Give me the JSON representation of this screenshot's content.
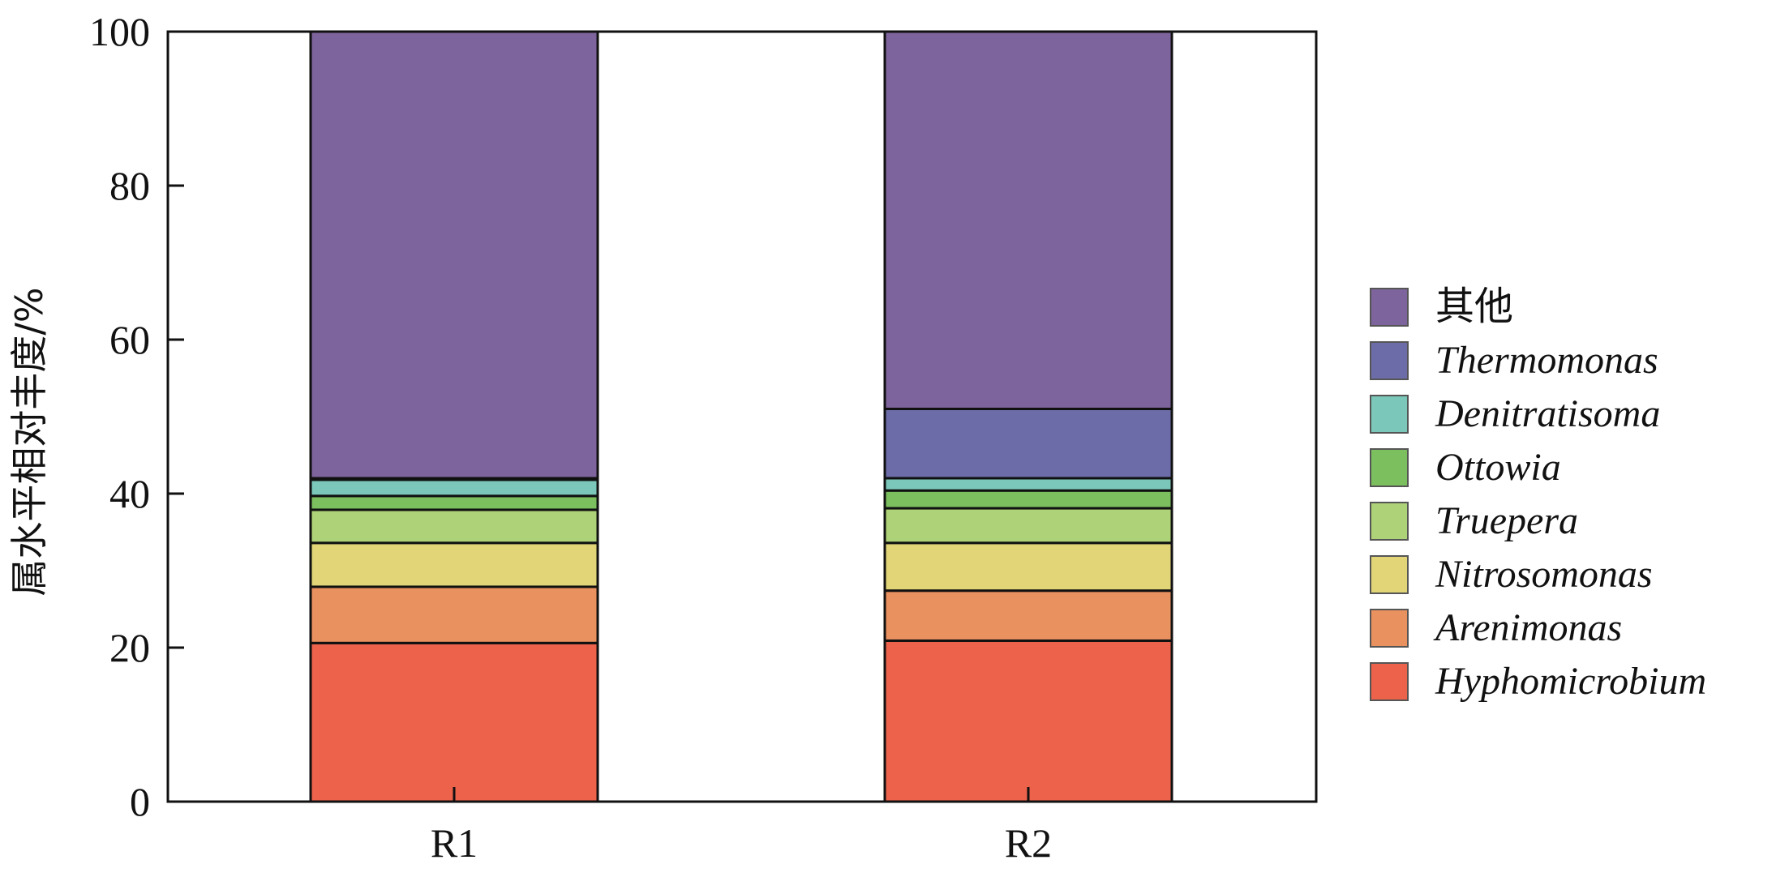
{
  "chart_data": {
    "type": "bar",
    "stacked": true,
    "categories": [
      "R1",
      "R2"
    ],
    "ylabel": "属水平相对丰度/%",
    "ylim": [
      0,
      100
    ],
    "yticks": [
      "0",
      "20",
      "40",
      "60",
      "80",
      "100"
    ],
    "legend_position": "right",
    "series": [
      {
        "name": "Hyphomicrobium",
        "color": "#EC624B",
        "italic": true,
        "values": [
          20.6,
          20.9
        ]
      },
      {
        "name": "Arenimonas",
        "color": "#EA9160",
        "italic": true,
        "values": [
          7.3,
          6.5
        ]
      },
      {
        "name": "Nitrosomonas",
        "color": "#E1D577",
        "italic": true,
        "values": [
          5.7,
          6.2
        ]
      },
      {
        "name": "Truepera",
        "color": "#AED277",
        "italic": true,
        "values": [
          4.3,
          4.5
        ]
      },
      {
        "name": "Ottowia",
        "color": "#7CBF5F",
        "italic": true,
        "values": [
          1.8,
          2.3
        ]
      },
      {
        "name": "Denitratisoma",
        "color": "#7BC7B9",
        "italic": true,
        "values": [
          2.1,
          1.6
        ]
      },
      {
        "name": "Thermomonas",
        "color": "#6C6DA8",
        "italic": true,
        "values": [
          0.2,
          9.0
        ]
      },
      {
        "name": "其他",
        "color": "#7E649D",
        "italic": false,
        "values": [
          58.0,
          49.0
        ]
      }
    ]
  }
}
